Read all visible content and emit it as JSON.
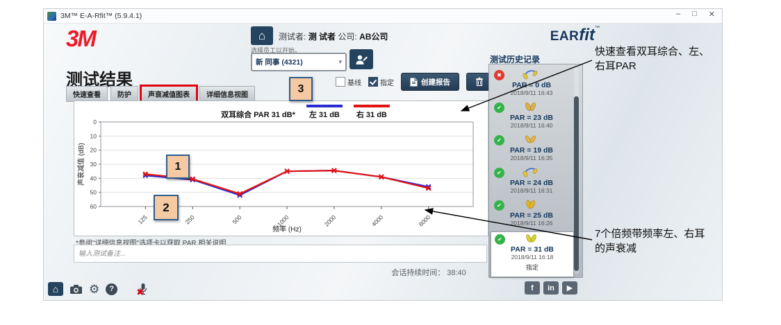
{
  "window": {
    "title": "3M™ E-A-Rfit™ (5.9.4.1)",
    "controls": {
      "minimize": "–",
      "maximize": "□",
      "close": "✕"
    }
  },
  "brand": {
    "logo": "3M",
    "product_ear": "EAR",
    "product_fit": "fit",
    "tm": "™"
  },
  "header": {
    "tester_label": "测试者:",
    "tester_name": "测 试者",
    "company_label": "公司:",
    "company_name": "AB公司",
    "select_hint": "选择员工以开始。",
    "employee_value": "新 同事 (4321)"
  },
  "icons": {
    "home": "⌂",
    "caret": "▾",
    "check": "✔",
    "cross": "✖",
    "gear": "⚙",
    "help": "?",
    "mic_muted_x": "✖"
  },
  "page": {
    "title": "测试结果"
  },
  "tabs": [
    {
      "label": "快速查看",
      "active": false
    },
    {
      "label": "防护",
      "active": false
    },
    {
      "label": "声衰减值图表",
      "active": true
    },
    {
      "label": "详细信息视图",
      "active": false
    }
  ],
  "controls": {
    "baseline_label": "基线",
    "designated_label": "指定",
    "create_report_label": "创建报告"
  },
  "callouts": {
    "c1": "1",
    "c2": "2",
    "c3": "3"
  },
  "chart_data": {
    "type": "line",
    "legend": {
      "binaural": "双耳综合 PAR 31 dB*",
      "left": "左 31 dB",
      "right": "右 31 dB"
    },
    "par": {
      "binaural_dB": 31,
      "left_dB": 31,
      "right_dB": 31
    },
    "categories": [
      "125",
      "250",
      "500",
      "1000",
      "2000",
      "4000",
      "8000"
    ],
    "xlabel": "频率 (Hz)",
    "ylabel": "声衰减值 (dB)",
    "ylim": [
      0,
      60
    ],
    "yticks": [
      0,
      10,
      20,
      30,
      40,
      50,
      60
    ],
    "y_axis_inverted": true,
    "grid": true,
    "legend_position": "top",
    "series": [
      {
        "name": "左",
        "color": "#2b2bd4",
        "values": [
          38,
          41,
          52,
          35,
          34.5,
          39,
          46
        ]
      },
      {
        "name": "右",
        "color": "#e31212",
        "values": [
          37,
          40.5,
          51,
          35,
          34.5,
          39,
          47
        ]
      }
    ]
  },
  "footnote": "*参阅\"详细信息视图\"选项卡以获取 PAR 相关说明",
  "notes": {
    "placeholder": "输入测试备注..."
  },
  "session": {
    "label": "会话持续时间：",
    "value": "38:40"
  },
  "history": {
    "title": "测试历史记录",
    "entries": [
      {
        "status": "fail",
        "icon": "earplugs-corded",
        "par": "PAR = 0 dB",
        "date": "2018/9/11 16:43"
      },
      {
        "status": "pass",
        "icon": "earplugs",
        "par": "PAR = 23 dB",
        "date": "2018/9/11 16:40"
      },
      {
        "status": "pass",
        "icon": "earplugs",
        "par": "PAR = 19 dB",
        "date": "2018/9/11 16:35"
      },
      {
        "status": "pass",
        "icon": "earplugs-corded",
        "par": "PAR = 24 dB",
        "date": "2018/9/11 16:31"
      },
      {
        "status": "pass",
        "icon": "earplugs",
        "par": "PAR = 25 dB",
        "date": "2018/9/11 16:26"
      },
      {
        "status": "pass",
        "icon": "earplugs",
        "par": "PAR = 31 dB",
        "date": "2018/9/11 16:18",
        "note": "指定",
        "selected": true
      }
    ]
  },
  "social": [
    "f",
    "in",
    "▶"
  ],
  "annotations": [
    {
      "text": "快速查看双耳综合、左、右耳PAR"
    },
    {
      "text": "7个倍频带频率左、右耳的声衰减"
    }
  ]
}
